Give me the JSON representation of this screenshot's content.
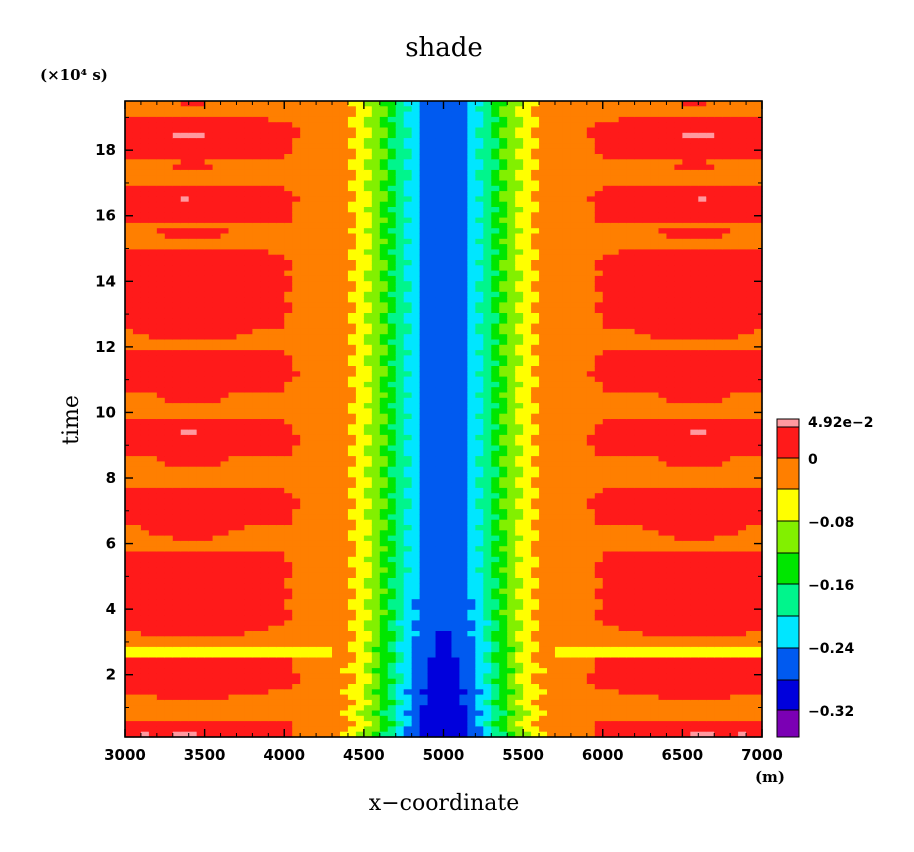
{
  "chart_data": {
    "type": "heatmap",
    "title": "shade",
    "xlabel": "x−coordinate",
    "ylabel": "time",
    "x_unit": "(m)",
    "y_unit": "(×10⁴ s)",
    "xlim": [
      3000,
      7000
    ],
    "ylim": [
      0.1,
      19.5
    ],
    "x_ticks": [
      3000,
      3500,
      4000,
      4500,
      5000,
      5500,
      6000,
      6500,
      7000
    ],
    "x_tick_labels": [
      "3000",
      "3500",
      "4000",
      "4500",
      "5000",
      "5500",
      "6000",
      "6500",
      "7000"
    ],
    "y_ticks": [
      2,
      4,
      6,
      8,
      10,
      12,
      14,
      16,
      18
    ],
    "y_tick_labels": [
      "2",
      "4",
      "6",
      "8",
      "10",
      "12",
      "14",
      "16",
      "18"
    ],
    "colorbar": {
      "levels": [
        -0.36,
        -0.32,
        -0.28,
        -0.24,
        -0.2,
        -0.16,
        -0.12,
        -0.08,
        -0.04,
        0,
        0.0451,
        0.0492
      ],
      "labels": [
        "4.92e−2",
        "0",
        "−0.08",
        "−0.16",
        "−0.24",
        "−0.32"
      ],
      "label_values": [
        0.0492,
        0,
        -0.08,
        -0.16,
        -0.24,
        -0.32
      ],
      "colors": [
        "#7b00b4",
        "#0000dc",
        "#005af0",
        "#00e6ff",
        "#00f58c",
        "#00e600",
        "#82f000",
        "#ffff00",
        "#ff7f00",
        "#ff1a1a",
        "#ff9aa0"
      ]
    },
    "field": {
      "center_x": 5000,
      "description_values": {
        "center_min": -0.34,
        "far_field_max": 0.03
      }
    }
  }
}
